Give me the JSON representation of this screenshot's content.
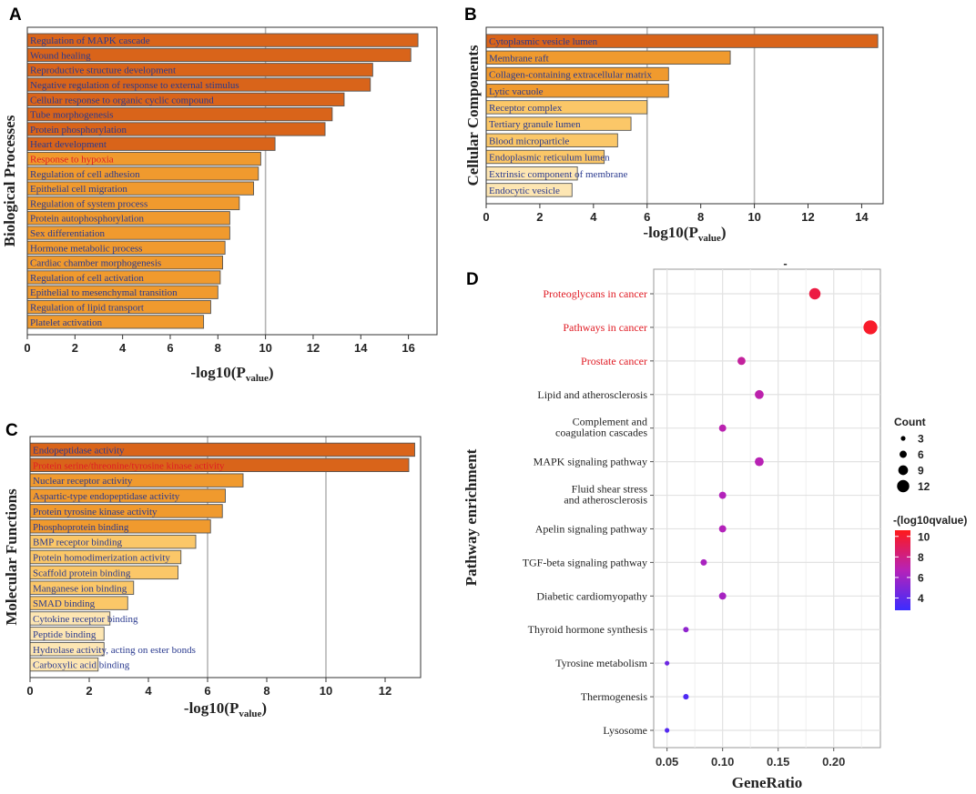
{
  "colors": {
    "bar_dark": "#d9641a",
    "bar_mid": "#f09a2e",
    "bar_light": "#fbc768",
    "bar_pale": "#fde6b3",
    "label_blue": "#2a3a8f",
    "label_red": "#e01b24",
    "label_black": "#222222",
    "grid": "#b5b5b5",
    "dot_grad_low": "#3b2cff",
    "dot_grad_mid": "#b622b8",
    "dot_grad_high": "#ff1a1a"
  },
  "chart_data": [
    {
      "panel": "A",
      "type": "bar",
      "orientation": "horizontal",
      "ylabel": "Biological Processes",
      "xlabel": "-log10(P",
      "xlabel_sub": "value",
      "xlabel_end": ")",
      "xlim": [
        0,
        17.2
      ],
      "xticks": [
        0,
        2,
        4,
        6,
        8,
        10,
        12,
        14,
        16
      ],
      "grid_x": [
        10
      ],
      "categories": [
        "Regulation of MAPK cascade",
        "Wound healing",
        "Reproductive structure development",
        "Negative regulation of response to external stimulus",
        "Cellular response to organic cyclic compound",
        "Tube morphogenesis",
        "Protein phosphorylation",
        "Heart development",
        "Response to hypoxia",
        "Regulation of cell adhesion",
        "Epithelial cell migration",
        "Regulation of system process",
        "Protein autophosphorylation",
        "Sex differentiation",
        "Hormone metabolic process",
        "Cardiac chamber morphogenesis",
        "Regulation of cell activation",
        "Epithelial to mesenchymal transition",
        "Regulation of lipid transport",
        "Platelet activation"
      ],
      "values": [
        16.4,
        16.1,
        14.5,
        14.4,
        13.3,
        12.8,
        12.5,
        10.4,
        9.8,
        9.7,
        9.5,
        8.9,
        8.5,
        8.5,
        8.3,
        8.2,
        8.1,
        8.0,
        7.7,
        7.4
      ],
      "shade": [
        "dark",
        "dark",
        "dark",
        "dark",
        "dark",
        "dark",
        "dark",
        "dark",
        "mid",
        "mid",
        "mid",
        "mid",
        "mid",
        "mid",
        "mid",
        "mid",
        "mid",
        "mid",
        "mid",
        "mid"
      ],
      "label_color": [
        "blue",
        "blue",
        "blue",
        "blue",
        "blue",
        "blue",
        "blue",
        "blue",
        "red",
        "blue",
        "blue",
        "blue",
        "blue",
        "blue",
        "blue",
        "blue",
        "blue",
        "blue",
        "blue",
        "blue"
      ]
    },
    {
      "panel": "B",
      "type": "bar",
      "orientation": "horizontal",
      "ylabel": "Cellular Components",
      "xlabel": "-log10(P",
      "xlabel_sub": "value",
      "xlabel_end": ")",
      "xlim": [
        0,
        14.8
      ],
      "xticks": [
        0,
        2,
        4,
        6,
        8,
        10,
        12,
        14
      ],
      "grid_x": [
        6,
        10
      ],
      "categories": [
        "Cytoplasmic vesicle lumen",
        "Membrane raft",
        "Collagen-containing extracellular matrix",
        "Lytic vacuole",
        "Receptor complex",
        "Tertiary granule lumen",
        "Blood microparticle",
        "Endoplasmic reticulum lumen",
        "Extrinsic component of membrane",
        "Endocytic vesicle"
      ],
      "values": [
        14.6,
        9.1,
        6.8,
        6.8,
        6.0,
        5.4,
        4.9,
        4.4,
        3.4,
        3.2
      ],
      "shade": [
        "dark",
        "mid",
        "mid",
        "mid",
        "light",
        "light",
        "light",
        "light",
        "pale",
        "pale"
      ],
      "label_color": [
        "blue",
        "blue",
        "blue",
        "blue",
        "blue",
        "blue",
        "blue",
        "blue",
        "blue",
        "blue"
      ]
    },
    {
      "panel": "C",
      "type": "bar",
      "orientation": "horizontal",
      "ylabel": "Molecular Functions",
      "xlabel": "-log10(P",
      "xlabel_sub": "value",
      "xlabel_end": ")",
      "xlim": [
        0,
        13.2
      ],
      "xticks": [
        0,
        2,
        4,
        6,
        8,
        10,
        12
      ],
      "grid_x": [
        6,
        10
      ],
      "categories": [
        "Endopeptidase activity",
        "Protein serine/threonine/tyrosine kinase activity",
        "Nuclear receptor activity",
        "Aspartic-type endopeptidase activity",
        "Protein tyrosine kinase activity",
        "Phosphoprotein binding",
        "BMP receptor binding",
        "Protein homodimerization activity",
        "Scaffold protein binding",
        "Manganese ion binding",
        "SMAD binding",
        "Cytokine receptor binding",
        "Peptide binding",
        "Hydrolase activity, acting on ester bonds",
        "Carboxylic acid binding"
      ],
      "values": [
        13.0,
        12.8,
        7.2,
        6.6,
        6.5,
        6.1,
        5.6,
        5.1,
        5.0,
        3.5,
        3.3,
        2.7,
        2.5,
        2.5,
        2.3
      ],
      "shade": [
        "dark",
        "dark",
        "mid",
        "mid",
        "mid",
        "mid",
        "light",
        "light",
        "light",
        "light",
        "light",
        "pale",
        "pale",
        "pale",
        "pale"
      ],
      "label_color": [
        "blue",
        "red",
        "blue",
        "blue",
        "blue",
        "blue",
        "blue",
        "blue",
        "blue",
        "blue",
        "blue",
        "blue",
        "blue",
        "blue",
        "blue"
      ]
    },
    {
      "panel": "D",
      "type": "scatter",
      "title": "-",
      "xlabel": "GeneRatio",
      "ylabel": "Pathway enrichment",
      "xlim": [
        0.038,
        0.242
      ],
      "xticks": [
        0.05,
        0.1,
        0.15,
        0.2
      ],
      "xtick_labels": [
        "0.05",
        "0.10",
        "0.15",
        "0.20"
      ],
      "categories": [
        "Proteoglycans in cancer",
        "Pathways in cancer",
        "Prostate cancer",
        "Lipid and atherosclerosis",
        "Complement and|coagulation cascades",
        "MAPK signaling pathway",
        "Fluid shear stress|and atherosclerosis",
        "Apelin signaling pathway",
        "TGF-beta signaling pathway",
        "Diabetic cardiomyopathy",
        "Thyroid hormone synthesis",
        "Tyrosine metabolism",
        "Thermogenesis",
        "Lysosome"
      ],
      "label_color": [
        "red",
        "red",
        "red",
        "black",
        "black",
        "black",
        "black",
        "black",
        "black",
        "black",
        "black",
        "black",
        "black",
        "black"
      ],
      "x": [
        0.183,
        0.233,
        0.117,
        0.133,
        0.1,
        0.133,
        0.1,
        0.1,
        0.083,
        0.1,
        0.067,
        0.05,
        0.067,
        0.05
      ],
      "count": [
        11,
        14,
        7,
        8,
        6,
        8,
        6,
        6,
        5,
        6,
        4,
        3,
        4,
        3
      ],
      "qvalue": [
        9.6,
        10.2,
        7.4,
        7.0,
        6.9,
        6.8,
        6.6,
        6.6,
        6.3,
        6.2,
        5.5,
        4.4,
        3.4,
        3.6
      ],
      "legend_count": {
        "title": "Count",
        "values": [
          3,
          6,
          9,
          12
        ]
      },
      "legend_color": {
        "title": "-(log10qvalue)",
        "ticks": [
          10,
          8,
          6,
          4
        ],
        "range": [
          2.8,
          10.6
        ]
      }
    }
  ]
}
